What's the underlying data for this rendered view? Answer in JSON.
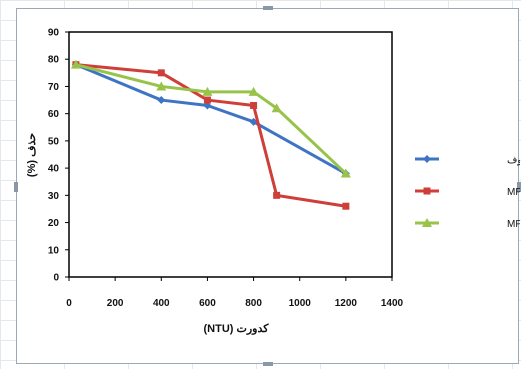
{
  "chart_data": {
    "type": "line",
    "xlabel": "کدورت (NTU)",
    "ylabel": "حذف (%)",
    "xlim": [
      0,
      1400
    ],
    "ylim": [
      0,
      90
    ],
    "xticks": [
      0,
      200,
      400,
      600,
      800,
      1000,
      1200,
      1400
    ],
    "yticks": [
      0,
      10,
      20,
      30,
      40,
      50,
      60,
      70,
      80,
      90
    ],
    "grid": false,
    "legend": "right",
    "series": [
      {
        "name": "باکتریهای هتروتروف",
        "color": "#3d74c4",
        "marker": "diamond",
        "x": [
          30,
          400,
          600,
          800,
          1200
        ],
        "y": [
          78,
          65,
          63,
          57,
          38
        ]
      },
      {
        "name": "مدفوعی MPN",
        "color": "#cf3f3a",
        "marker": "square",
        "x": [
          30,
          400,
          600,
          800,
          900,
          1200
        ],
        "y": [
          78,
          75,
          65,
          63,
          30,
          26
        ]
      },
      {
        "name": "کلMPN",
        "color": "#97c34a",
        "marker": "triangle",
        "x": [
          30,
          400,
          600,
          800,
          900,
          1200
        ],
        "y": [
          78,
          70,
          68,
          68,
          62,
          38
        ]
      }
    ]
  }
}
